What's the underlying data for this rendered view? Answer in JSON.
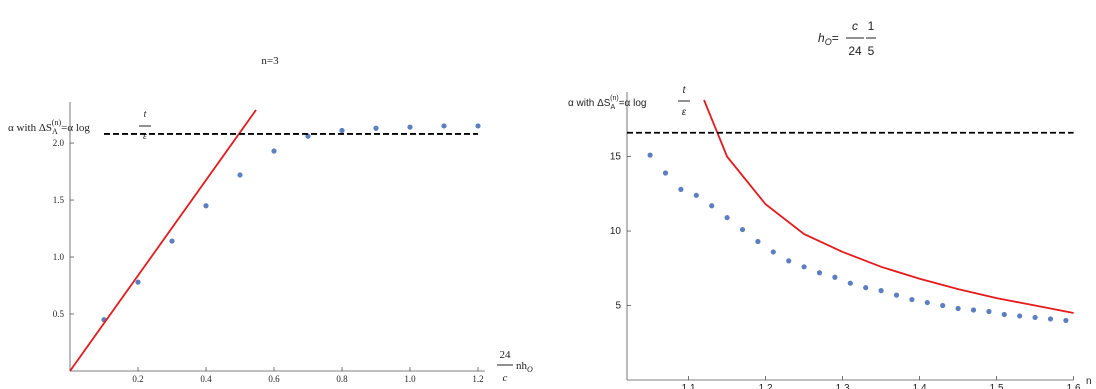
{
  "chart_data": [
    {
      "type": "scatter",
      "title": "n=3",
      "ylabel": {
        "prefix": "α with ΔS",
        "sub": "A",
        "sup": "(n)",
        "mid": "=α log",
        "num": "t",
        "den": "ε"
      },
      "xlabel": {
        "num": "24",
        "den": "c",
        "text": "nh",
        "sub": "O"
      },
      "xlim": [
        0,
        1.22
      ],
      "ylim": [
        0,
        2.29
      ],
      "xticks": [
        0.2,
        0.4,
        0.6,
        0.8,
        {
          "value": 1,
          "label": "1.0"
        },
        1.2
      ],
      "yticks": [
        0.5,
        {
          "value": 1,
          "label": "1.0"
        },
        1.5,
        {
          "value": 2,
          "label": "2.0"
        }
      ],
      "series": [
        {
          "style": "dots",
          "color": "#5b7fbf",
          "x": [
            0.1,
            0.2,
            0.3,
            0.4,
            0.5,
            0.6,
            0.7,
            0.8,
            0.9,
            1.0,
            1.1,
            1.2
          ],
          "values": [
            0.45,
            0.78,
            1.14,
            1.45,
            1.72,
            1.93,
            2.06,
            2.11,
            2.13,
            2.14,
            2.15,
            2.15
          ]
        },
        {
          "style": "solid",
          "color": "#e41a1c",
          "x": [
            0,
            0.547
          ],
          "values": [
            0,
            2.29
          ]
        },
        {
          "style": "dashed",
          "color": "#000000",
          "x": [
            0.1,
            1.2
          ],
          "values": [
            2.08,
            2.08
          ]
        }
      ]
    },
    {
      "type": "scatter",
      "title": {
        "lhs": "h",
        "sub": "O",
        "eq": "=",
        "n1": "c",
        "d1": "24",
        "n2": "1",
        "d2": "5"
      },
      "ylabel": {
        "prefix": "α with ΔS",
        "sub": "A",
        "sup": "(n)",
        "mid": "=α log",
        "num": "t",
        "den": "ε"
      },
      "xlabel": "n",
      "xlim": [
        1.02,
        1.6
      ],
      "ylim": [
        0,
        18.8
      ],
      "xticks": [
        1.1,
        1.2,
        1.3,
        1.4,
        1.5,
        1.6
      ],
      "yticks": [
        5,
        10,
        15
      ],
      "series": [
        {
          "style": "dots",
          "color": "#5b7fbf",
          "x": [
            1.05,
            1.07,
            1.09,
            1.11,
            1.13,
            1.15,
            1.17,
            1.19,
            1.21,
            1.23,
            1.25,
            1.27,
            1.29,
            1.31,
            1.33,
            1.35,
            1.37,
            1.39,
            1.41,
            1.43,
            1.45,
            1.47,
            1.49,
            1.51,
            1.53,
            1.55,
            1.57,
            1.59
          ],
          "values": [
            15.1,
            13.9,
            12.8,
            12.4,
            11.7,
            10.9,
            10.1,
            9.3,
            8.6,
            8.0,
            7.6,
            7.2,
            6.9,
            6.5,
            6.2,
            6.0,
            5.7,
            5.4,
            5.2,
            5.0,
            4.8,
            4.7,
            4.6,
            4.4,
            4.3,
            4.2,
            4.1,
            4.0
          ]
        },
        {
          "style": "solid",
          "color": "#e41a1c",
          "x": [
            1.12,
            1.15,
            1.2,
            1.25,
            1.3,
            1.35,
            1.4,
            1.45,
            1.5,
            1.55,
            1.6
          ],
          "values": [
            18.8,
            15,
            11.8,
            9.8,
            8.6,
            7.6,
            6.8,
            6.1,
            5.5,
            5.0,
            4.5
          ]
        },
        {
          "style": "dashed",
          "color": "#000000",
          "x": [
            1.02,
            1.6
          ],
          "values": [
            16.6,
            16.6
          ]
        }
      ]
    }
  ]
}
